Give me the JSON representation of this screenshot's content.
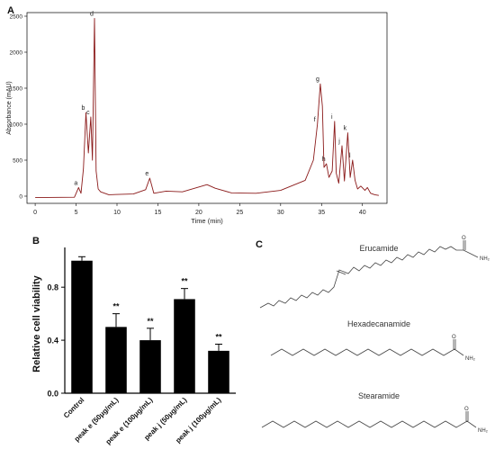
{
  "panels": {
    "a": "A",
    "b": "B",
    "c": "C"
  },
  "colors": {
    "chromatogram": "#8b1a1a",
    "bars": "#000000",
    "axis": "#000000",
    "structure": "#333333"
  },
  "chart_data": [
    {
      "type": "line",
      "xlabel": "Time (min)",
      "ylabel": "Absorbance (mAU)",
      "xlim": [
        -1,
        43
      ],
      "ylim": [
        -100,
        2550
      ],
      "xticks": [
        0,
        5,
        10,
        15,
        20,
        25,
        30,
        35,
        40
      ],
      "yticks": [
        0,
        500,
        1000,
        1500,
        2000,
        2500
      ],
      "grid": false,
      "series": [
        {
          "x": [
            0,
            4.8,
            5.3,
            5.6,
            5.9,
            6.2,
            6.5,
            6.8,
            7.0,
            7.25,
            7.45,
            7.7,
            8.0,
            9,
            12,
            13.5,
            14.0,
            14.5,
            16,
            18,
            21,
            22,
            24,
            27,
            30,
            33,
            34,
            34.5,
            34.85,
            35.1,
            35.3,
            35.6,
            35.9,
            36.3,
            36.6,
            36.8,
            37.1,
            37.5,
            37.8,
            38.2,
            38.5,
            38.8,
            39.1,
            39.4,
            39.8,
            40.3,
            40.6,
            41.0,
            41.5,
            42
          ],
          "y": [
            -20,
            -15,
            120,
            40,
            380,
            1160,
            600,
            1100,
            500,
            2470,
            350,
            100,
            60,
            20,
            30,
            90,
            250,
            40,
            70,
            60,
            160,
            110,
            45,
            40,
            80,
            220,
            500,
            1000,
            1560,
            1250,
            400,
            450,
            260,
            350,
            1040,
            320,
            180,
            700,
            210,
            880,
            260,
            500,
            220,
            100,
            140,
            80,
            120,
            40,
            20,
            10
          ]
        }
      ],
      "peak_labels": [
        {
          "label": "a",
          "x": 5.3,
          "y": 120
        },
        {
          "label": "b",
          "x": 6.2,
          "y": 1160
        },
        {
          "label": "c",
          "x": 6.8,
          "y": 1100
        },
        {
          "label": "d",
          "x": 7.25,
          "y": 2470
        },
        {
          "label": "e",
          "x": 14.0,
          "y": 250
        },
        {
          "label": "f",
          "x": 34.5,
          "y": 1000
        },
        {
          "label": "g",
          "x": 34.85,
          "y": 1560
        },
        {
          "label": "h",
          "x": 35.6,
          "y": 450
        },
        {
          "label": "i",
          "x": 36.6,
          "y": 1040
        },
        {
          "label": "j",
          "x": 37.5,
          "y": 700
        },
        {
          "label": "k",
          "x": 38.2,
          "y": 880
        },
        {
          "label": "l",
          "x": 38.8,
          "y": 500
        }
      ]
    },
    {
      "type": "bar",
      "ylabel": "Relative cell viability",
      "ylim": [
        0,
        1.1
      ],
      "yticks": [
        "0.0",
        "0.4",
        "0.8"
      ],
      "categories": [
        "Control",
        "peak e (50μg/mL)",
        "peak e (100μg/mL)",
        "peak j (50μg/mL)",
        "peak j (100μg/mL)"
      ],
      "values": [
        1.0,
        0.5,
        0.4,
        0.71,
        0.32
      ],
      "errors": [
        0.03,
        0.1,
        0.09,
        0.08,
        0.05
      ],
      "annotations": [
        "",
        "**",
        "**",
        "**",
        "**"
      ]
    }
  ],
  "structures": [
    {
      "name": "Erucamide",
      "group": "NH₂"
    },
    {
      "name": "Hexadecanamide",
      "group": "NH₂"
    },
    {
      "name": "Stearamide",
      "group": "NH₂"
    }
  ]
}
